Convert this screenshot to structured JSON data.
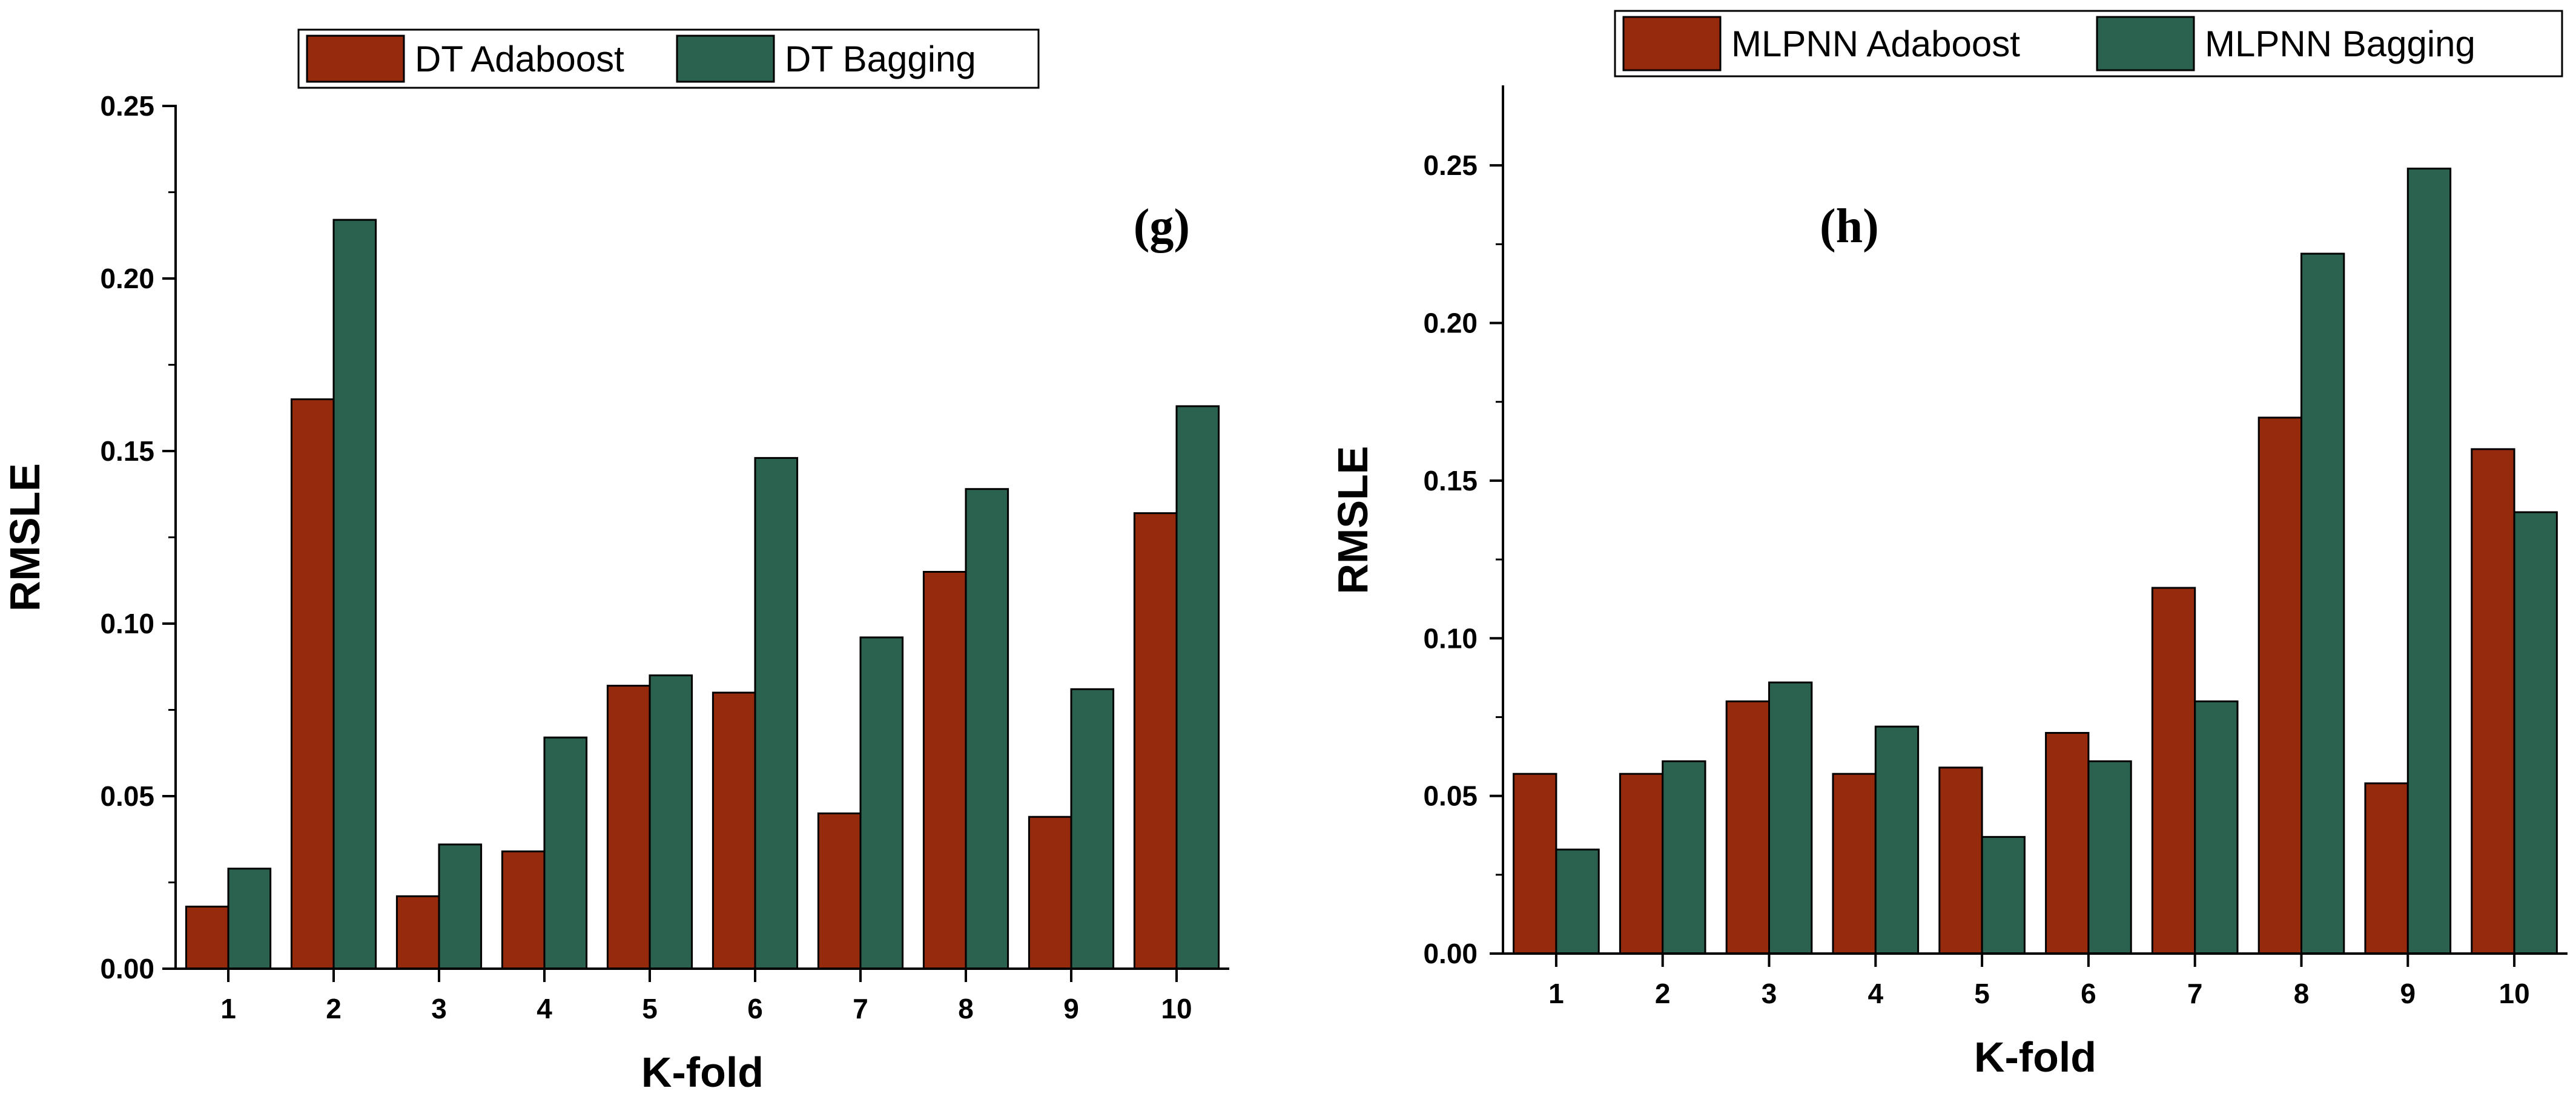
{
  "colors": {
    "adaboost": "#952A0C",
    "bagging": "#2A614F",
    "axis": "#000000"
  },
  "chart_data": [
    {
      "type": "bar",
      "panel_label": "(g)",
      "title": "",
      "xlabel": "K-fold",
      "ylabel": "RMSLE",
      "ylim": [
        0,
        0.25
      ],
      "yticks": [
        "0.00",
        "0.05",
        "0.10",
        "0.15",
        "0.20",
        "0.25"
      ],
      "categories": [
        "1",
        "2",
        "3",
        "4",
        "5",
        "6",
        "7",
        "8",
        "9",
        "10"
      ],
      "legend_position": "top",
      "series": [
        {
          "name": "DT Adaboost",
          "color_key": "adaboost",
          "values": [
            0.018,
            0.165,
            0.021,
            0.034,
            0.082,
            0.08,
            0.045,
            0.115,
            0.044,
            0.132
          ]
        },
        {
          "name": "DT Bagging",
          "color_key": "bagging",
          "values": [
            0.029,
            0.217,
            0.036,
            0.067,
            0.085,
            0.148,
            0.096,
            0.139,
            0.081,
            0.163
          ]
        }
      ]
    },
    {
      "type": "bar",
      "panel_label": "(h)",
      "title": "",
      "xlabel": "K-fold",
      "ylabel": "RMSLE",
      "ylim": [
        0,
        0.275
      ],
      "yticks": [
        "0.00",
        "0.05",
        "0.10",
        "0.15",
        "0.20",
        "0.25"
      ],
      "categories": [
        "1",
        "2",
        "3",
        "4",
        "5",
        "6",
        "7",
        "8",
        "9",
        "10"
      ],
      "legend_position": "top",
      "series": [
        {
          "name": "MLPNN Adaboost",
          "color_key": "adaboost",
          "values": [
            0.057,
            0.057,
            0.08,
            0.057,
            0.059,
            0.07,
            0.116,
            0.17,
            0.054,
            0.16
          ]
        },
        {
          "name": "MLPNN Bagging",
          "color_key": "bagging",
          "values": [
            0.033,
            0.061,
            0.086,
            0.072,
            0.037,
            0.061,
            0.08,
            0.222,
            0.249,
            0.14
          ]
        }
      ]
    }
  ]
}
